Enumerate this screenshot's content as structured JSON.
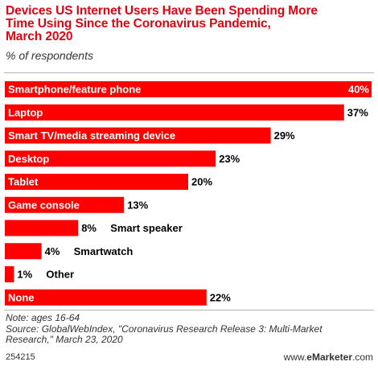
{
  "title_lines": [
    "Devices US Internet Users Have Been Spending More",
    "Time Using Since the Coronavirus Pandemic,",
    "March 2020"
  ],
  "subtitle": "% of respondents",
  "chart_data": {
    "type": "bar",
    "orientation": "horizontal",
    "categories": [
      "Smartphone/feature phone",
      "Laptop",
      "Smart TV/media streaming device",
      "Desktop",
      "Tablet",
      "Game console",
      "Smart speaker",
      "Smartwatch",
      "Other",
      "None"
    ],
    "values": [
      40,
      37,
      29,
      23,
      20,
      13,
      8,
      4,
      1,
      22
    ],
    "value_labels": [
      "40%",
      "37%",
      "29%",
      "23%",
      "20%",
      "13%",
      "8%",
      "4%",
      "1%",
      "22%"
    ],
    "unit": "%",
    "xlim": [
      0,
      40
    ],
    "bar_color": "#ff0000",
    "grid": false,
    "legend": "none"
  },
  "note_lines": [
    "Note: ages 16-64",
    "Source: GlobalWebIndex, \"Coronavirus Research Release 3: Multi-Market",
    "Research,\" March 23, 2020"
  ],
  "chart_id": "254215",
  "brand": {
    "prefix": "www.",
    "name": "eMarketer",
    "suffix": ".com"
  },
  "colors": {
    "title": "#e8000f",
    "bar": "#ff0000",
    "text": "#333333",
    "rule": "#b5b5b5"
  }
}
